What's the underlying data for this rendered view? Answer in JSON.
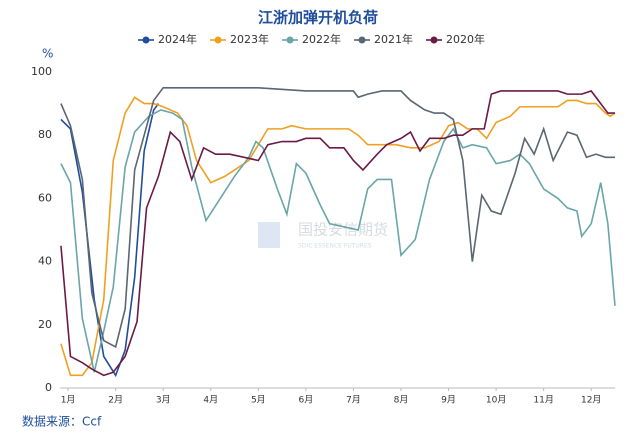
{
  "chart_data": {
    "type": "line",
    "title": "江浙加弹开机负荷",
    "ylabel": "%",
    "source": "数据来源：Ccf",
    "watermark": "国投安信期货",
    "watermark_sub": "SDIC ESSENCE FUTURES",
    "xlim": [
      0.83,
      12.5
    ],
    "xticks": [
      {
        "value": 1,
        "label": "1月"
      },
      {
        "value": 2,
        "label": "2月"
      },
      {
        "value": 3,
        "label": "3月"
      },
      {
        "value": 4,
        "label": "4月"
      },
      {
        "value": 5,
        "label": "5月"
      },
      {
        "value": 6,
        "label": "6月"
      },
      {
        "value": 7,
        "label": "7月"
      },
      {
        "value": 8,
        "label": "8月"
      },
      {
        "value": 9,
        "label": "9月"
      },
      {
        "value": 10,
        "label": "10月"
      },
      {
        "value": 11,
        "label": "11月"
      },
      {
        "value": 12,
        "label": "12月"
      }
    ],
    "ylim": [
      0,
      100
    ],
    "yticks": [
      0,
      20,
      40,
      60,
      80,
      100
    ],
    "grid": false,
    "legend": "top",
    "series": [
      {
        "name": "2024年",
        "color": "#1f4e9c",
        "x": [
          0.85,
          1.05,
          1.3,
          1.55,
          1.75,
          2.0,
          2.2,
          2.4,
          2.6,
          2.8,
          2.9
        ],
        "values": [
          85,
          82,
          62,
          28,
          10,
          4,
          12,
          35,
          75,
          88,
          90
        ]
      },
      {
        "name": "2023年",
        "color": "#f0a020",
        "x": [
          0.85,
          1.05,
          1.3,
          1.5,
          1.75,
          1.95,
          2.2,
          2.4,
          2.6,
          2.8,
          3.0,
          3.3,
          3.5,
          3.7,
          4.0,
          4.3,
          4.6,
          4.8,
          5.0,
          5.2,
          5.5,
          5.7,
          6.0,
          6.3,
          6.6,
          6.9,
          7.1,
          7.3,
          7.6,
          7.9,
          8.2,
          8.5,
          8.8,
          9.0,
          9.2,
          9.4,
          9.6,
          9.8,
          10.0,
          10.3,
          10.5,
          10.8,
          11.0,
          11.3,
          11.5,
          11.7,
          11.9,
          12.1,
          12.3,
          12.4,
          12.5
        ],
        "values": [
          14,
          4,
          4,
          8,
          28,
          72,
          87,
          92,
          90,
          90,
          89,
          87,
          83,
          72,
          65,
          67,
          70,
          72,
          77,
          82,
          82,
          83,
          82,
          82,
          82,
          82,
          80,
          77,
          77,
          77,
          76,
          76,
          78,
          83,
          84,
          82,
          82,
          79,
          84,
          86,
          89,
          89,
          89,
          89,
          91,
          91,
          90,
          90,
          87,
          86,
          87
        ]
      },
      {
        "name": "2022年",
        "color": "#6aa5a8",
        "x": [
          0.85,
          1.05,
          1.3,
          1.55,
          1.75,
          1.95,
          2.2,
          2.4,
          2.7,
          2.95,
          3.2,
          3.4,
          3.6,
          3.9,
          4.2,
          4.5,
          4.8,
          4.95,
          5.1,
          5.4,
          5.6,
          5.8,
          6.0,
          6.3,
          6.5,
          6.8,
          7.1,
          7.3,
          7.5,
          7.8,
          8.0,
          8.3,
          8.6,
          8.9,
          9.1,
          9.3,
          9.5,
          9.8,
          10.0,
          10.3,
          10.5,
          10.7,
          11.0,
          11.3,
          11.5,
          11.7,
          11.8,
          12.0,
          12.2,
          12.35,
          12.5
        ],
        "values": [
          71,
          65,
          22,
          5,
          18,
          32,
          70,
          81,
          86,
          88,
          87,
          85,
          70,
          53,
          60,
          67,
          73,
          78,
          76,
          63,
          55,
          71,
          68,
          58,
          52,
          51,
          50,
          63,
          66,
          66,
          42,
          47,
          66,
          78,
          82,
          76,
          77,
          76,
          71,
          72,
          74,
          71,
          63,
          60,
          57,
          56,
          48,
          52,
          65,
          52,
          26
        ]
      },
      {
        "name": "2021年",
        "color": "#5a6670",
        "x": [
          0.85,
          1.05,
          1.3,
          1.5,
          1.75,
          2.0,
          2.2,
          2.4,
          2.6,
          2.8,
          3.0,
          3.3,
          4.0,
          5.0,
          6.0,
          7.0,
          7.1,
          7.3,
          7.6,
          8.0,
          8.2,
          8.5,
          8.7,
          8.9,
          9.1,
          9.3,
          9.5,
          9.7,
          9.9,
          10.1,
          10.4,
          10.6,
          10.8,
          11.0,
          11.2,
          11.5,
          11.7,
          11.9,
          12.1,
          12.3,
          12.5
        ],
        "values": [
          90,
          83,
          66,
          30,
          15,
          13,
          25,
          69,
          80,
          91,
          95,
          95,
          95,
          95,
          94,
          94,
          92,
          93,
          94,
          94,
          91,
          88,
          87,
          87,
          85,
          72,
          40,
          61,
          56,
          55,
          68,
          79,
          74,
          82,
          72,
          81,
          80,
          73,
          74,
          73,
          73
        ]
      },
      {
        "name": "2020年",
        "color": "#6b1a45",
        "x": [
          0.85,
          1.05,
          1.3,
          1.5,
          1.75,
          1.95,
          2.2,
          2.45,
          2.65,
          2.9,
          3.15,
          3.35,
          3.6,
          3.85,
          4.1,
          4.4,
          4.7,
          5.0,
          5.2,
          5.5,
          5.8,
          6.0,
          6.3,
          6.5,
          6.8,
          7.0,
          7.2,
          7.5,
          7.7,
          8.0,
          8.2,
          8.4,
          8.6,
          8.9,
          9.1,
          9.3,
          9.5,
          9.75,
          9.9,
          10.1,
          10.5,
          11.0,
          11.3,
          11.5,
          11.8,
          12.0,
          12.2,
          12.35,
          12.5
        ],
        "values": [
          45,
          10,
          8,
          6,
          4,
          5,
          10,
          21,
          57,
          67,
          81,
          78,
          66,
          76,
          74,
          74,
          73,
          72,
          77,
          78,
          78,
          79,
          79,
          76,
          76,
          72,
          69,
          74,
          77,
          79,
          81,
          75,
          79,
          79,
          80,
          80,
          82,
          82,
          93,
          94,
          94,
          94,
          94,
          93,
          93,
          94,
          90,
          87,
          87
        ]
      }
    ]
  }
}
